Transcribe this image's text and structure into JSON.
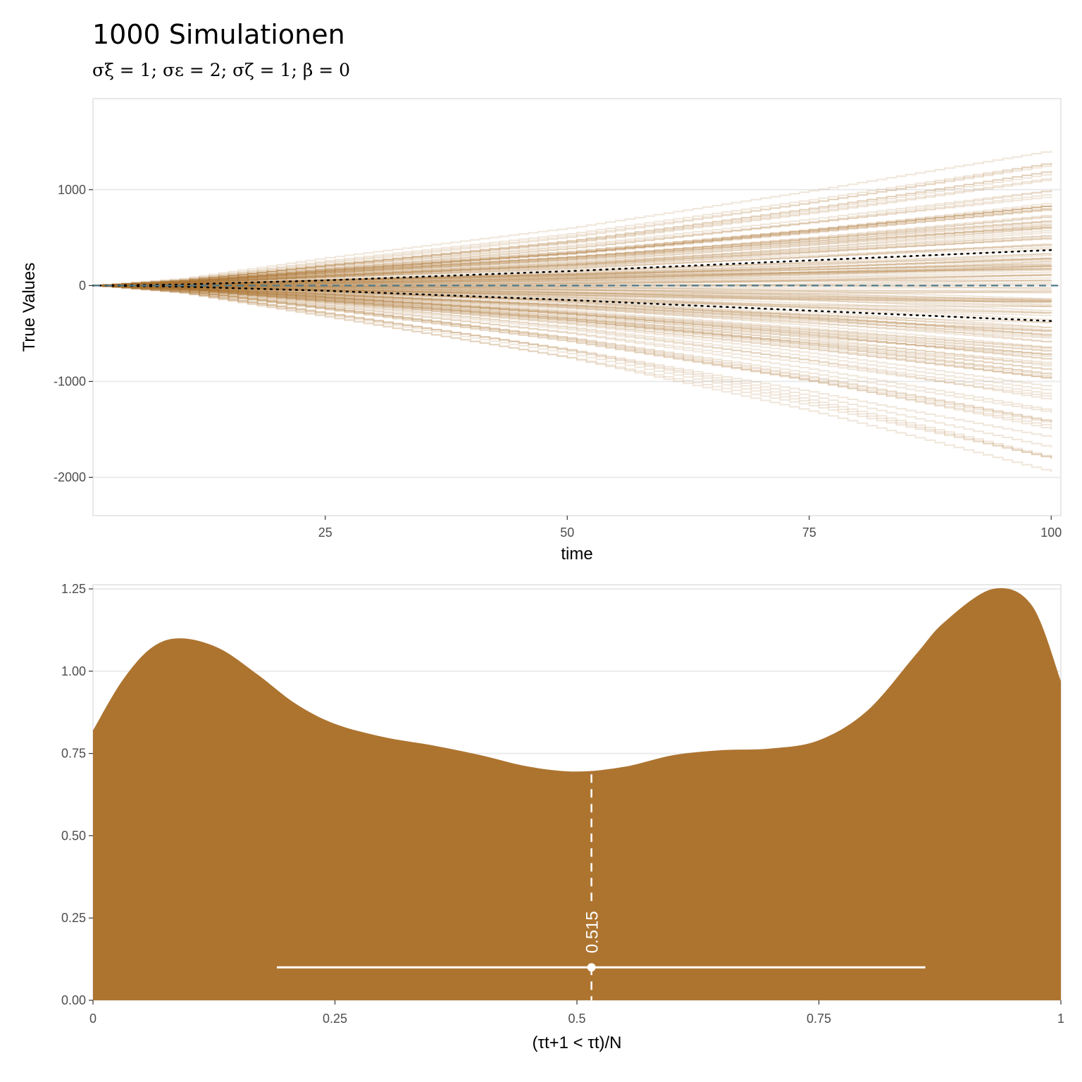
{
  "title": "1000 Simulationen",
  "subtitle": "σξ = 1;  σε = 2;  σζ = 1;  β = 0",
  "colors": {
    "line": "#AD7430",
    "fill": "#AD7430",
    "zero_line": "#4F7A8A",
    "quantile": "#000000",
    "grid": "#EBEBEB",
    "panel_border": "#D9D9D9",
    "annotation": "#FFFFFF"
  },
  "chart_data": [
    {
      "type": "line",
      "xlabel": "time",
      "ylabel": "True Values",
      "xlim": [
        1,
        101
      ],
      "ylim": [
        -2400,
        1950
      ],
      "xticks": [
        25,
        50,
        75,
        100
      ],
      "yticks": [
        -2000,
        -1000,
        0,
        1000
      ],
      "n_series": 1000,
      "series": [
        {
          "style": "dotted",
          "x": [
            1,
            10,
            25,
            50,
            75,
            100
          ],
          "values": [
            0,
            11,
            54,
            150,
            262,
            370
          ]
        },
        {
          "style": "dotted",
          "x": [
            1,
            10,
            25,
            50,
            75,
            100
          ],
          "values": [
            0,
            -11,
            -54,
            -150,
            -262,
            -370
          ]
        },
        {
          "style": "dashed",
          "x": [
            1,
            101
          ],
          "values": [
            0,
            0
          ]
        }
      ],
      "envelope": {
        "x": [
          1,
          10,
          25,
          50,
          75,
          100
        ],
        "max": [
          0,
          90,
          360,
          750,
          1250,
          1800
        ],
        "min": [
          0,
          -90,
          -380,
          -880,
          -1500,
          -2200
        ]
      },
      "grid": true
    },
    {
      "type": "area",
      "xlabel": "(τt+1 < τt)/N",
      "ylabel": "",
      "xlim": [
        0,
        1
      ],
      "ylim": [
        0,
        1.25
      ],
      "xticks": [
        0,
        0.25,
        0.5,
        0.75,
        1
      ],
      "xtick_labels": [
        "0",
        "0.25",
        "0.5",
        "0.75",
        "1"
      ],
      "yticks": [
        0,
        0.25,
        0.5,
        0.75,
        1.0,
        1.25
      ],
      "ytick_labels": [
        "0.00",
        "0.25",
        "0.50",
        "0.75",
        "1.00",
        "1.25"
      ],
      "x": [
        0,
        0.03,
        0.06,
        0.09,
        0.13,
        0.17,
        0.21,
        0.25,
        0.3,
        0.35,
        0.4,
        0.45,
        0.5,
        0.55,
        0.6,
        0.65,
        0.7,
        0.75,
        0.8,
        0.85,
        0.88,
        0.93,
        0.97,
        1.0
      ],
      "values": [
        0.82,
        0.97,
        1.07,
        1.1,
        1.07,
        0.99,
        0.9,
        0.84,
        0.8,
        0.775,
        0.745,
        0.71,
        0.695,
        0.71,
        0.745,
        0.76,
        0.765,
        0.79,
        0.88,
        1.05,
        1.15,
        1.25,
        1.2,
        0.97
      ],
      "median": 0.515,
      "median_label": "0.515",
      "interval": [
        0.19,
        0.86
      ],
      "interval_y": 0.1,
      "grid": true
    }
  ]
}
